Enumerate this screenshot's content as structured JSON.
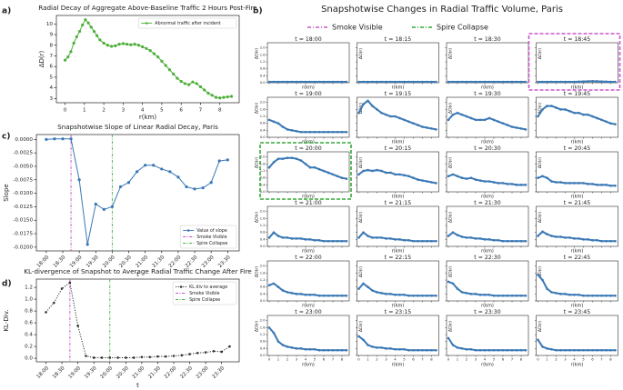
{
  "chart_data": [
    {
      "type": "line",
      "panel": "a)",
      "title": "Radial Decay of Aggregate Above-Baseline Traffic 2 Hours Post-Fire",
      "xlabel": "r(km)",
      "ylabel": "ΔD(r)",
      "x": [
        0,
        0.15,
        0.3,
        0.45,
        0.6,
        0.75,
        0.9,
        1.05,
        1.2,
        1.35,
        1.5,
        1.65,
        1.8,
        2.0,
        2.2,
        2.4,
        2.6,
        2.8,
        3.0,
        3.2,
        3.4,
        3.6,
        3.8,
        4.0,
        4.2,
        4.4,
        4.6,
        4.8,
        5.0,
        5.2,
        5.4,
        5.6,
        5.8,
        6.0,
        6.2,
        6.4,
        6.6,
        6.8,
        7.0,
        7.2,
        7.4,
        7.6,
        7.8,
        8.0,
        8.2,
        8.4,
        8.6
      ],
      "series": [
        {
          "name": "Abnormal traffic after incident",
          "color": "#4daf3a",
          "linestyle": "solid",
          "values": [
            6.6,
            6.9,
            7.4,
            8.2,
            8.8,
            9.3,
            9.9,
            10.4,
            10.1,
            9.7,
            9.3,
            8.9,
            8.5,
            8.2,
            8.0,
            7.9,
            7.95,
            8.1,
            8.15,
            8.1,
            8.05,
            8.1,
            8.0,
            7.85,
            7.7,
            7.5,
            7.2,
            6.9,
            6.5,
            6.1,
            5.7,
            5.3,
            4.9,
            4.6,
            4.4,
            4.3,
            4.55,
            4.4,
            4.1,
            3.8,
            3.5,
            3.3,
            3.1,
            3.05,
            3.1,
            3.15,
            3.2
          ]
        }
      ],
      "xlim": [
        -0.45,
        9.0
      ],
      "ylim": [
        2.6,
        10.8
      ],
      "xticks": [
        0,
        1,
        2,
        3,
        4,
        5,
        6,
        7,
        8
      ],
      "yticks": [
        3,
        4,
        5,
        6,
        7,
        8,
        9,
        10
      ],
      "legend": "upper right",
      "events": []
    },
    {
      "type": "line",
      "panel": "c)",
      "title": "Snapshotwise Slope of Linear Radial Decay, Paris",
      "xlabel": "t",
      "ylabel": "Slope",
      "xtick_rotation": 45,
      "x": [
        18,
        18.25,
        18.5,
        18.75,
        19,
        19.25,
        19.5,
        19.75,
        20,
        20.25,
        20.5,
        20.75,
        21,
        21.25,
        21.5,
        21.75,
        22,
        22.25,
        22.5,
        22.75,
        23,
        23.25,
        23.5
      ],
      "series": [
        {
          "name": "Value of slope",
          "color": "#3a78b5",
          "linestyle": "solid",
          "values": [
            0,
            0.0001,
            0.0001,
            0.0001,
            -0.0075,
            -0.0195,
            -0.012,
            -0.013,
            -0.0125,
            -0.0088,
            -0.008,
            -0.006,
            -0.0048,
            -0.0048,
            -0.0055,
            -0.006,
            -0.007,
            -0.0088,
            -0.0092,
            -0.009,
            -0.008,
            -0.004,
            -0.0038
          ]
        }
      ],
      "events": [
        {
          "name": "Smoke Visible",
          "color": "#c050c0",
          "x": 18.75
        },
        {
          "name": "Spire Collapse",
          "color": "#44b044",
          "x": 20
        }
      ],
      "xlim": [
        17.7,
        23.85
      ],
      "ylim": [
        -0.0207,
        0.0009
      ],
      "xticks": [
        {
          "value": 18,
          "label": "18:00"
        },
        {
          "value": 18.5,
          "label": "18:30"
        },
        {
          "value": 19,
          "label": "19:00"
        },
        {
          "value": 19.5,
          "label": "19:30"
        },
        {
          "value": 20,
          "label": "20:00"
        },
        {
          "value": 20.5,
          "label": "20:30"
        },
        {
          "value": 21,
          "label": "21:00"
        },
        {
          "value": 21.5,
          "label": "21:30"
        },
        {
          "value": 22,
          "label": "22:00"
        },
        {
          "value": 22.5,
          "label": "22:30"
        },
        {
          "value": 23,
          "label": "23:00"
        },
        {
          "value": 23.5,
          "label": "23:30"
        }
      ],
      "yticks": [
        {
          "value": 0,
          "label": "0.0000"
        },
        -0.0025,
        {
          "value": -0.005,
          "label": "-0.0050"
        },
        -0.0075,
        {
          "value": -0.01,
          "label": "-0.0100"
        },
        -0.0125,
        {
          "value": -0.015,
          "label": "-0.0150"
        },
        -0.0175,
        {
          "value": -0.02,
          "label": "-0.0200"
        }
      ],
      "legend": "lower right"
    },
    {
      "type": "line",
      "panel": "d)",
      "title": "KL-divergence of Snapshot to Average Radial Traffic Change After Fire",
      "xlabel": "t",
      "ylabel": "KL-Div.",
      "xtick_rotation": 45,
      "x": [
        18,
        18.25,
        18.5,
        18.75,
        19,
        19.25,
        19.5,
        19.75,
        20,
        20.25,
        20.5,
        20.75,
        21,
        21.25,
        21.5,
        21.75,
        22,
        22.25,
        22.5,
        22.75,
        23,
        23.25,
        23.5,
        23.75
      ],
      "series": [
        {
          "name": "KL div to average",
          "color": "#333333",
          "linestyle": "dotted",
          "values": [
            0.78,
            0.94,
            1.18,
            1.28,
            0.55,
            0.04,
            0.01,
            0.01,
            0.01,
            0.01,
            0.01,
            0.01,
            0.02,
            0.02,
            0.03,
            0.03,
            0.04,
            0.05,
            0.07,
            0.09,
            0.1,
            0.12,
            0.11,
            0.2
          ]
        }
      ],
      "events": [
        {
          "name": "Smoke Visible",
          "color": "#c050c0",
          "x": 18.75
        },
        {
          "name": "Spire Collapse",
          "color": "#44b044",
          "x": 20
        }
      ],
      "xlim": [
        17.7,
        24.05
      ],
      "ylim": [
        -0.06,
        1.34
      ],
      "xticks": [
        {
          "value": 18,
          "label": "18:00"
        },
        {
          "value": 18.5,
          "label": "18:30"
        },
        {
          "value": 19,
          "label": "19:00"
        },
        {
          "value": 19.5,
          "label": "19:30"
        },
        {
          "value": 20,
          "label": "20:00"
        },
        {
          "value": 20.5,
          "label": "20:30"
        },
        {
          "value": 21,
          "label": "21:00"
        },
        {
          "value": 21.5,
          "label": "21:30"
        },
        {
          "value": 22,
          "label": "22:00"
        },
        {
          "value": 22.5,
          "label": "22:30"
        },
        {
          "value": 23,
          "label": "23:00"
        },
        {
          "value": 23.5,
          "label": "23:30"
        }
      ],
      "yticks": [
        {
          "value": 0,
          "label": "0.0"
        },
        0.2,
        0.4,
        0.6,
        0.8,
        {
          "value": 1,
          "label": "1.0"
        },
        1.2
      ],
      "legend": "upper right"
    },
    {
      "type": "small_multiples",
      "panel": "b)",
      "title": "Snapshotwise Changes in Radial Traffic Volume, Paris",
      "xlabel": "r(km)",
      "ylabel": "ΔD(r)",
      "color": "#3a78b5",
      "x": [
        0,
        0.5,
        1,
        1.5,
        2,
        2.5,
        3,
        3.5,
        4,
        4.5,
        5,
        5.5,
        6,
        6.5,
        7,
        7.5,
        8,
        8.5
      ],
      "xlim": [
        -0.2,
        8.8
      ],
      "ylim": [
        0,
        2.3
      ],
      "xticks": [
        0,
        1,
        2,
        3,
        4,
        5,
        6,
        7,
        8
      ],
      "yticks": [
        {
          "value": 0,
          "label": "0.0"
        },
        0.4,
        0.8,
        1.2,
        1.6,
        {
          "value": 2,
          "label": "2.0"
        }
      ],
      "events": [
        {
          "name": "Smoke Visible",
          "color": "#cc55cc",
          "panel": 3
        },
        {
          "name": "Spire Collapse",
          "color": "#33aa33",
          "panel": 8
        }
      ],
      "panels": [
        {
          "title": "t = 18:00",
          "values": [
            0.05,
            0.05,
            0.05,
            0.05,
            0.05,
            0.05,
            0.05,
            0.05,
            0.05,
            0.05,
            0.05,
            0.05,
            0.05,
            0.05,
            0.05,
            0.05,
            0.05,
            0.05
          ]
        },
        {
          "title": "t = 18:15",
          "values": [
            0.05,
            0.05,
            0.05,
            0.05,
            0.05,
            0.05,
            0.05,
            0.05,
            0.05,
            0.05,
            0.05,
            0.05,
            0.05,
            0.05,
            0.05,
            0.05,
            0.05,
            0.05
          ]
        },
        {
          "title": "t = 18:30",
          "values": [
            0.05,
            0.05,
            0.05,
            0.05,
            0.05,
            0.05,
            0.05,
            0.05,
            0.05,
            0.05,
            0.05,
            0.05,
            0.05,
            0.05,
            0.05,
            0.05,
            0.05,
            0.05
          ]
        },
        {
          "title": "t = 18:45",
          "values": [
            0.05,
            0.05,
            0.05,
            0.05,
            0.05,
            0.05,
            0.05,
            0.05,
            0.05,
            0.06,
            0.07,
            0.08,
            0.09,
            0.08,
            0.07,
            0.06,
            0.05,
            0.05
          ]
        },
        {
          "title": "t = 19:00",
          "values": [
            1.0,
            0.9,
            0.8,
            0.6,
            0.45,
            0.4,
            0.35,
            0.3,
            0.3,
            0.3,
            0.3,
            0.3,
            0.3,
            0.3,
            0.3,
            0.3,
            0.3,
            0.3
          ]
        },
        {
          "title": "t = 19:15",
          "values": [
            1.4,
            1.9,
            2.1,
            1.8,
            1.6,
            1.4,
            1.3,
            1.2,
            1.2,
            1.1,
            1.0,
            0.9,
            0.8,
            0.7,
            0.6,
            0.55,
            0.5,
            0.45
          ]
        },
        {
          "title": "t = 19:30",
          "values": [
            1.0,
            1.3,
            1.4,
            1.3,
            1.2,
            1.1,
            1.0,
            1.0,
            1.0,
            1.1,
            1.0,
            0.9,
            0.8,
            0.7,
            0.6,
            0.55,
            0.5,
            0.45
          ]
        },
        {
          "title": "t = 19:45",
          "values": [
            1.2,
            1.6,
            1.8,
            1.8,
            1.7,
            1.6,
            1.6,
            1.5,
            1.4,
            1.4,
            1.3,
            1.3,
            1.2,
            1.1,
            1.0,
            0.9,
            0.8,
            0.75
          ]
        },
        {
          "title": "t = 20:00",
          "values": [
            1.4,
            1.7,
            1.9,
            1.9,
            1.95,
            1.95,
            1.9,
            1.8,
            1.6,
            1.4,
            1.4,
            1.3,
            1.2,
            1.1,
            1.0,
            0.9,
            0.8,
            0.75
          ]
        },
        {
          "title": "t = 20:15",
          "values": [
            1.0,
            1.2,
            1.25,
            1.2,
            1.25,
            1.2,
            1.1,
            1.1,
            1.0,
            1.0,
            0.95,
            0.9,
            0.8,
            0.7,
            0.65,
            0.6,
            0.55,
            0.5
          ]
        },
        {
          "title": "t = 20:30",
          "values": [
            0.9,
            1.0,
            0.9,
            0.8,
            0.75,
            0.8,
            0.7,
            0.65,
            0.6,
            0.6,
            0.55,
            0.5,
            0.5,
            0.45,
            0.45,
            0.4,
            0.4,
            0.4
          ]
        },
        {
          "title": "t = 20:45",
          "values": [
            0.8,
            0.9,
            0.8,
            0.6,
            0.55,
            0.55,
            0.5,
            0.5,
            0.5,
            0.5,
            0.5,
            0.45,
            0.45,
            0.4,
            0.4,
            0.4,
            0.35,
            0.35
          ]
        },
        {
          "title": "t = 21:00",
          "values": [
            0.5,
            0.8,
            0.6,
            0.5,
            0.5,
            0.45,
            0.45,
            0.45,
            0.4,
            0.4,
            0.35,
            0.35,
            0.3,
            0.3,
            0.3,
            0.3,
            0.3,
            0.3
          ]
        },
        {
          "title": "t = 21:15",
          "values": [
            0.5,
            0.8,
            0.6,
            0.5,
            0.5,
            0.5,
            0.45,
            0.45,
            0.4,
            0.4,
            0.35,
            0.35,
            0.3,
            0.3,
            0.3,
            0.3,
            0.3,
            0.3
          ]
        },
        {
          "title": "t = 21:30",
          "values": [
            0.6,
            0.8,
            0.65,
            0.55,
            0.5,
            0.5,
            0.45,
            0.45,
            0.4,
            0.4,
            0.35,
            0.35,
            0.3,
            0.3,
            0.3,
            0.3,
            0.3,
            0.3
          ]
        },
        {
          "title": "t = 21:45",
          "values": [
            0.6,
            0.85,
            0.7,
            0.6,
            0.55,
            0.55,
            0.5,
            0.5,
            0.45,
            0.45,
            0.4,
            0.4,
            0.35,
            0.35,
            0.3,
            0.3,
            0.3,
            0.3
          ]
        },
        {
          "title": "t = 22:00",
          "values": [
            0.9,
            1.0,
            0.8,
            0.6,
            0.5,
            0.45,
            0.4,
            0.4,
            0.35,
            0.35,
            0.35,
            0.3,
            0.3,
            0.3,
            0.3,
            0.3,
            0.3,
            0.3
          ]
        },
        {
          "title": "t = 22:15",
          "values": [
            0.7,
            1.0,
            0.8,
            0.6,
            0.5,
            0.45,
            0.4,
            0.4,
            0.35,
            0.35,
            0.35,
            0.3,
            0.3,
            0.3,
            0.3,
            0.3,
            0.3,
            0.3
          ]
        },
        {
          "title": "t = 22:30",
          "values": [
            1.1,
            1.0,
            0.7,
            0.5,
            0.45,
            0.4,
            0.4,
            0.35,
            0.35,
            0.35,
            0.3,
            0.3,
            0.3,
            0.3,
            0.3,
            0.3,
            0.3,
            0.3
          ]
        },
        {
          "title": "t = 22:45",
          "values": [
            1.5,
            1.2,
            0.7,
            0.5,
            0.45,
            0.4,
            0.4,
            0.35,
            0.35,
            0.35,
            0.3,
            0.3,
            0.3,
            0.3,
            0.3,
            0.3,
            0.3,
            0.3
          ]
        },
        {
          "title": "t = 23:00",
          "values": [
            1.6,
            1.3,
            0.8,
            0.6,
            0.5,
            0.45,
            0.4,
            0.4,
            0.35,
            0.35,
            0.35,
            0.3,
            0.3,
            0.3,
            0.3,
            0.3,
            0.3,
            0.3
          ]
        },
        {
          "title": "t = 23:15",
          "values": [
            1.1,
            0.9,
            0.6,
            0.5,
            0.45,
            0.45,
            0.4,
            0.4,
            0.35,
            0.35,
            0.35,
            0.3,
            0.3,
            0.3,
            0.3,
            0.3,
            0.3,
            0.3
          ]
        },
        {
          "title": "t = 23:30",
          "values": [
            1.0,
            0.6,
            0.45,
            0.4,
            0.35,
            0.35,
            0.3,
            0.3,
            0.3,
            0.3,
            0.3,
            0.3,
            0.3,
            0.3,
            0.3,
            0.3,
            0.3,
            0.3
          ]
        },
        {
          "title": "t = 23:45",
          "values": [
            0.9,
            0.5,
            0.4,
            0.35,
            0.3,
            0.3,
            0.3,
            0.3,
            0.3,
            0.3,
            0.3,
            0.3,
            0.3,
            0.3,
            0.3,
            0.3,
            0.3,
            0.3
          ]
        }
      ]
    }
  ]
}
